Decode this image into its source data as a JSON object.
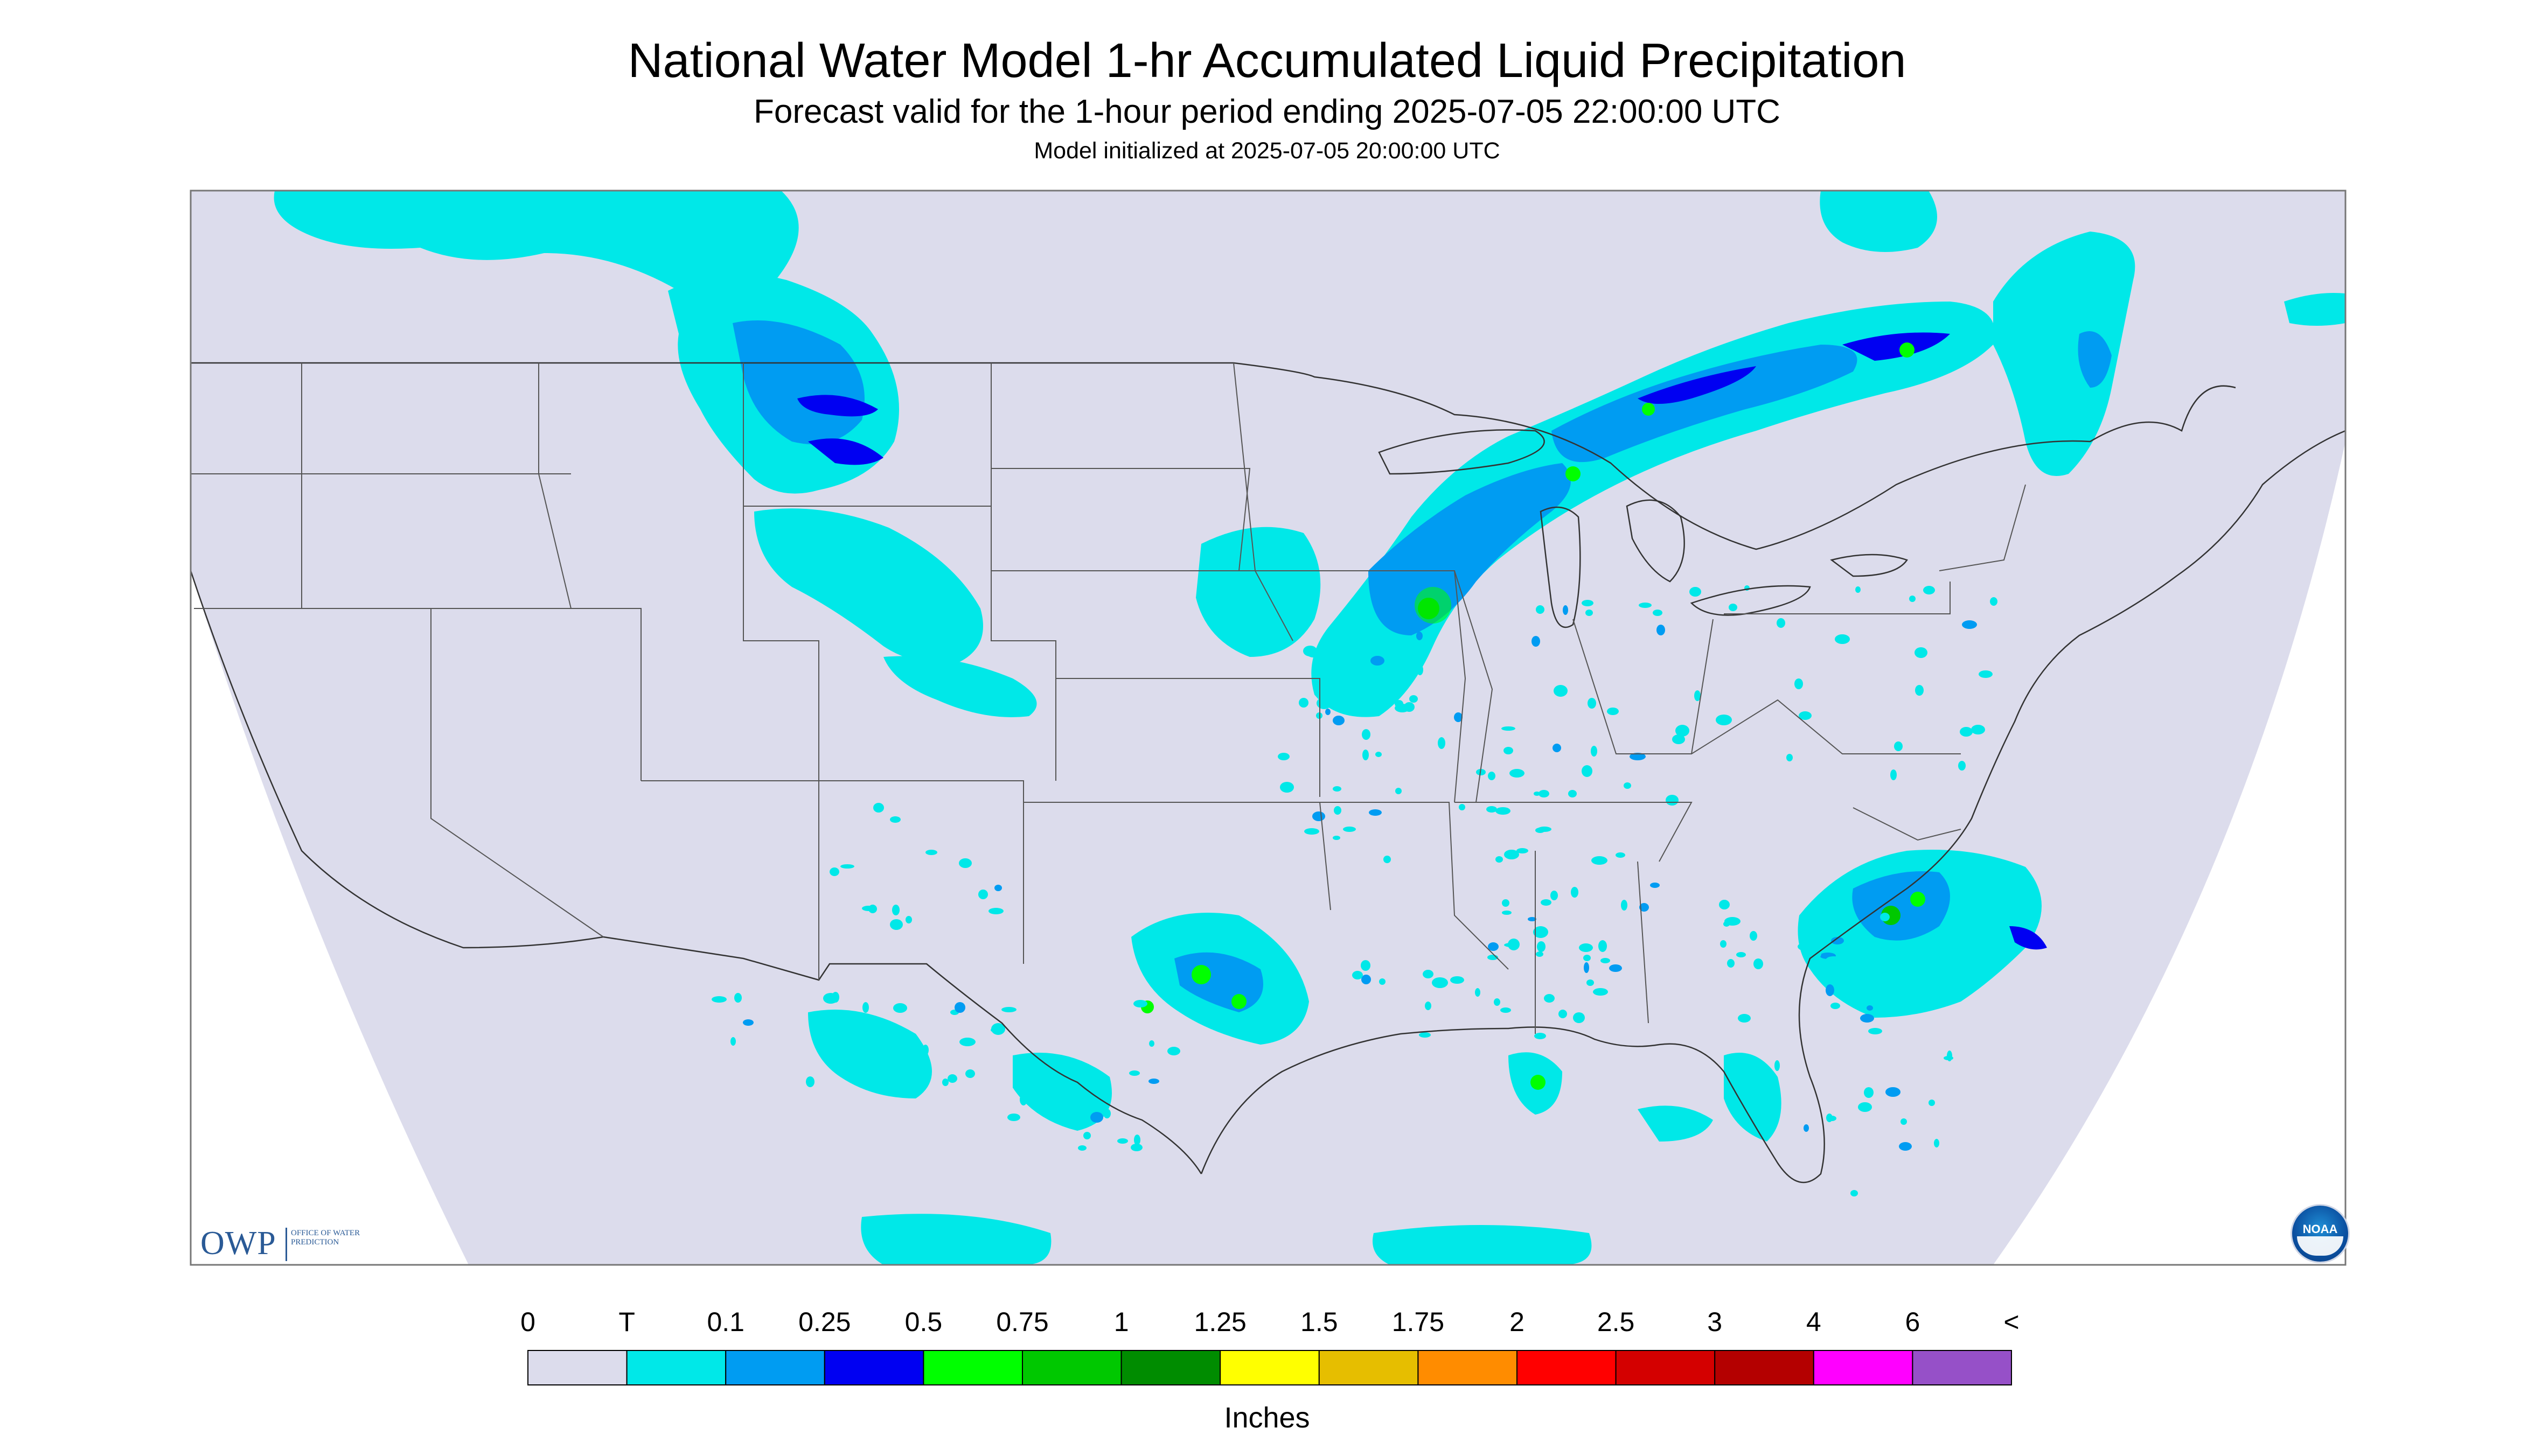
{
  "header": {
    "title": "National Water Model 1-hr Accumulated Liquid Precipitation",
    "subtitle": "Forecast valid for the 1-hour period ending 2025-07-05 22:00:00 UTC",
    "init_note": "Model initialized at 2025-07-05 20:00:00 UTC"
  },
  "map": {
    "region": "Continental United States",
    "background_color": "#dcdcec",
    "outside_projection_color": "#ffffff",
    "boundary_color": "#333333",
    "precip_features": [
      {
        "area": "Southern Canada / Montana / Idaho",
        "class": "T"
      },
      {
        "area": "Montana / Wyoming",
        "class": "0.1"
      },
      {
        "area": "Minnesota / Wisconsin / Lake Superior",
        "class": "0.25"
      },
      {
        "area": "Southwest Wisconsin",
        "class": "0.75"
      },
      {
        "area": "Ontario / Quebec",
        "class": "0.1"
      },
      {
        "area": "Central Texas",
        "class": "0.5"
      },
      {
        "area": "Eastern North Carolina / Atlantic coast",
        "class": "0.75"
      },
      {
        "area": "Northern Gulf of Mexico",
        "class": "0.5"
      },
      {
        "area": "Florida",
        "class": "0.1"
      },
      {
        "area": "Northern Mexico",
        "class": "T"
      }
    ]
  },
  "logos": {
    "owp_main": "OWP",
    "owp_sub": "OFFICE OF WATER PREDICTION",
    "noaa": "NOAA"
  },
  "legend": {
    "tick_labels": [
      "0",
      "T",
      "0.1",
      "0.25",
      "0.5",
      "0.75",
      "1",
      "1.25",
      "1.5",
      "1.75",
      "2",
      "2.5",
      "3",
      "4",
      "6",
      "<"
    ],
    "colors": [
      "#dcdcec",
      "#00e8e8",
      "#009cf2",
      "#0000f2",
      "#00ff00",
      "#00c800",
      "#008c00",
      "#ffff00",
      "#e6be00",
      "#ff8c00",
      "#ff0000",
      "#d40000",
      "#b40000",
      "#ff00ff",
      "#9650c8"
    ],
    "units": "Inches"
  }
}
